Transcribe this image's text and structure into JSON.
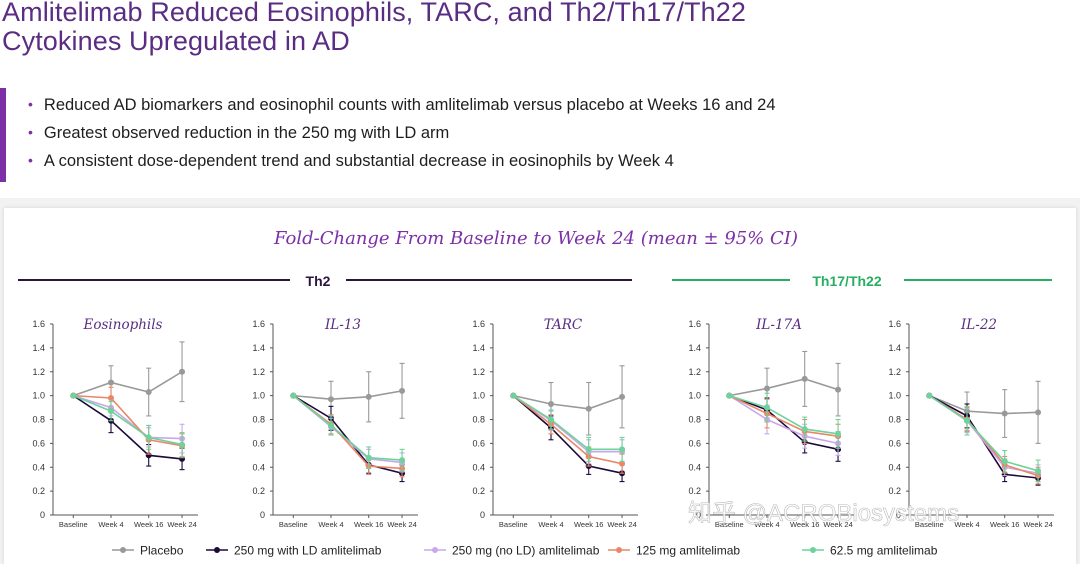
{
  "title_lines": [
    "Amlitelimab Reduced Eosinophils, TARC, and Th2/Th17/Th22",
    "Cytokines Upregulated in AD"
  ],
  "bullets": [
    "Reduced AD biomarkers and eosinophil counts with amlitelimab versus placebo at Weeks 16 and 24",
    "Greatest observed reduction in the 250 mg with LD arm",
    "A consistent dose-dependent trend and substantial decrease in eosinophils by Week 4"
  ],
  "figure_title": "Fold-Change From Baseline to Week 24 (mean ± 95% CI)",
  "groups": [
    {
      "label": "Th2",
      "color": "#2b1640"
    },
    {
      "label": "Th17/Th22",
      "color": "#27ae60"
    }
  ],
  "watermark": "知乎 @ACROBiosystems",
  "colors": {
    "title": "#5a2d82",
    "accent": "#7d2fa5",
    "placebo": "#999999",
    "ld250": "#1a0a3a",
    "nold250": "#c9a8e8",
    "mg125": "#e8876a",
    "mg62": "#6dd39a"
  },
  "chart_data": [
    {
      "type": "line",
      "title": "Eosinophils",
      "x": [
        "Baseline",
        "Week 4",
        "Week 16",
        "Week 24"
      ],
      "yticks": [
        "0",
        "0.2",
        "0.4",
        "0.6",
        "0.8",
        "1.0",
        "1.2",
        "1.4",
        "1.6"
      ],
      "ylim": [
        0,
        1.6
      ],
      "series": [
        {
          "name": "Placebo",
          "color": "#999999",
          "values": [
            1.0,
            1.11,
            1.03,
            1.2
          ],
          "err": [
            0,
            0.14,
            0.2,
            0.25
          ]
        },
        {
          "name": "250 mg with LD amlitelimab",
          "color": "#1a0a3a",
          "values": [
            1.0,
            0.79,
            0.5,
            0.47
          ],
          "err": [
            0,
            0.1,
            0.09,
            0.09
          ]
        },
        {
          "name": "250 mg (no LD) amlitelimab",
          "color": "#c9a8e8",
          "values": [
            1.0,
            0.9,
            0.65,
            0.64
          ],
          "err": [
            0,
            0.07,
            0.08,
            0.12
          ]
        },
        {
          "name": "125 mg amlitelimab",
          "color": "#e8876a",
          "values": [
            1.0,
            0.98,
            0.63,
            0.58
          ],
          "err": [
            0,
            0.09,
            0.12,
            0.1
          ]
        },
        {
          "name": "62.5 mg amlitelimab",
          "color": "#6dd39a",
          "values": [
            1.0,
            0.87,
            0.65,
            0.59
          ],
          "err": [
            0,
            0.08,
            0.1,
            0.1
          ]
        }
      ]
    },
    {
      "type": "line",
      "title": "IL-13",
      "x": [
        "Baseline",
        "Week 4",
        "Week 16",
        "Week 24"
      ],
      "yticks": [
        "0",
        "0.2",
        "0.4",
        "0.6",
        "0.8",
        "1.0",
        "1.2",
        "1.4",
        "1.6"
      ],
      "ylim": [
        0,
        1.6
      ],
      "series": [
        {
          "name": "Placebo",
          "color": "#999999",
          "values": [
            1.0,
            0.97,
            0.99,
            1.04
          ],
          "err": [
            0,
            0.15,
            0.21,
            0.23
          ]
        },
        {
          "name": "250 mg with LD amlitelimab",
          "color": "#1a0a3a",
          "values": [
            1.0,
            0.81,
            0.42,
            0.35
          ],
          "err": [
            0,
            0.1,
            0.07,
            0.07
          ]
        },
        {
          "name": "250 mg (no LD) amlitelimab",
          "color": "#c9a8e8",
          "values": [
            1.0,
            0.74,
            0.47,
            0.44
          ],
          "err": [
            0,
            0.07,
            0.08,
            0.08
          ]
        },
        {
          "name": "125 mg amlitelimab",
          "color": "#e8876a",
          "values": [
            1.0,
            0.76,
            0.41,
            0.39
          ],
          "err": [
            0,
            0.08,
            0.07,
            0.07
          ]
        },
        {
          "name": "62.5 mg amlitelimab",
          "color": "#6dd39a",
          "values": [
            1.0,
            0.75,
            0.48,
            0.46
          ],
          "err": [
            0,
            0.08,
            0.09,
            0.09
          ]
        }
      ]
    },
    {
      "type": "line",
      "title": "TARC",
      "x": [
        "Baseline",
        "Week 4",
        "Week 16",
        "Week 24"
      ],
      "yticks": [
        "0",
        "0.2",
        "0.4",
        "0.6",
        "0.8",
        "1.0",
        "1.2",
        "1.4",
        "1.6"
      ],
      "ylim": [
        0,
        1.6
      ],
      "series": [
        {
          "name": "Placebo",
          "color": "#999999",
          "values": [
            1.0,
            0.93,
            0.89,
            0.99
          ],
          "err": [
            0,
            0.18,
            0.22,
            0.26
          ]
        },
        {
          "name": "250 mg with LD amlitelimab",
          "color": "#1a0a3a",
          "values": [
            1.0,
            0.73,
            0.41,
            0.35
          ],
          "err": [
            0,
            0.1,
            0.07,
            0.07
          ]
        },
        {
          "name": "250 mg (no LD) amlitelimab",
          "color": "#c9a8e8",
          "values": [
            1.0,
            0.79,
            0.53,
            0.53
          ],
          "err": [
            0,
            0.08,
            0.1,
            0.1
          ]
        },
        {
          "name": "125 mg amlitelimab",
          "color": "#e8876a",
          "values": [
            1.0,
            0.76,
            0.49,
            0.43
          ],
          "err": [
            0,
            0.08,
            0.08,
            0.08
          ]
        },
        {
          "name": "62.5 mg amlitelimab",
          "color": "#6dd39a",
          "values": [
            1.0,
            0.8,
            0.55,
            0.55
          ],
          "err": [
            0,
            0.08,
            0.1,
            0.1
          ]
        }
      ]
    },
    {
      "type": "line",
      "title": "IL-17A",
      "x": [
        "Baseline",
        "Week 4",
        "Week 16",
        "Week 24"
      ],
      "yticks": [
        "0",
        "0.2",
        "0.4",
        "0.6",
        "0.8",
        "1.0",
        "1.2",
        "1.4",
        "1.6"
      ],
      "ylim": [
        0,
        1.6
      ],
      "series": [
        {
          "name": "Placebo",
          "color": "#999999",
          "values": [
            1.0,
            1.06,
            1.14,
            1.05
          ],
          "err": [
            0,
            0.17,
            0.23,
            0.22
          ]
        },
        {
          "name": "250 mg with LD amlitelimab",
          "color": "#1a0a3a",
          "values": [
            1.0,
            0.88,
            0.61,
            0.55
          ],
          "err": [
            0,
            0.1,
            0.09,
            0.1
          ]
        },
        {
          "name": "250 mg (no LD) amlitelimab",
          "color": "#c9a8e8",
          "values": [
            1.0,
            0.8,
            0.66,
            0.6
          ],
          "err": [
            0,
            0.12,
            0.1,
            0.1
          ]
        },
        {
          "name": "125 mg amlitelimab",
          "color": "#e8876a",
          "values": [
            1.0,
            0.85,
            0.7,
            0.66
          ],
          "err": [
            0,
            0.12,
            0.1,
            0.1
          ]
        },
        {
          "name": "62.5 mg amlitelimab",
          "color": "#6dd39a",
          "values": [
            1.0,
            0.9,
            0.72,
            0.68
          ],
          "err": [
            0,
            0.12,
            0.1,
            0.12
          ]
        }
      ]
    },
    {
      "type": "line",
      "title": "IL-22",
      "x": [
        "Baseline",
        "Week 4",
        "Week 16",
        "Week 24"
      ],
      "yticks": [
        "0",
        "0.2",
        "0.4",
        "0.6",
        "0.8",
        "1.0",
        "1.2",
        "1.4",
        "1.6"
      ],
      "ylim": [
        0,
        1.6
      ],
      "series": [
        {
          "name": "Placebo",
          "color": "#999999",
          "values": [
            1.0,
            0.87,
            0.85,
            0.86
          ],
          "err": [
            0,
            0.16,
            0.2,
            0.26
          ]
        },
        {
          "name": "250 mg with LD amlitelimab",
          "color": "#1a0a3a",
          "values": [
            1.0,
            0.83,
            0.34,
            0.31
          ],
          "err": [
            0,
            0.1,
            0.06,
            0.06
          ]
        },
        {
          "name": "250 mg (no LD) amlitelimab",
          "color": "#c9a8e8",
          "values": [
            1.0,
            0.79,
            0.4,
            0.35
          ],
          "err": [
            0,
            0.1,
            0.07,
            0.07
          ]
        },
        {
          "name": "125 mg amlitelimab",
          "color": "#e8876a",
          "values": [
            1.0,
            0.8,
            0.42,
            0.33
          ],
          "err": [
            0,
            0.1,
            0.07,
            0.07
          ]
        },
        {
          "name": "62.5 mg amlitelimab",
          "color": "#6dd39a",
          "values": [
            1.0,
            0.79,
            0.45,
            0.37
          ],
          "err": [
            0,
            0.12,
            0.09,
            0.09
          ]
        }
      ]
    }
  ],
  "legend": [
    {
      "label": "Placebo",
      "color": "#999999"
    },
    {
      "label": "250 mg with LD amlitelimab",
      "color": "#1a0a3a"
    },
    {
      "label": "250 mg (no LD) amlitelimab",
      "color": "#c9a8e8"
    },
    {
      "label": "125 mg amlitelimab",
      "color": "#e8876a"
    },
    {
      "label": "62.5 mg amlitelimab",
      "color": "#6dd39a"
    }
  ]
}
